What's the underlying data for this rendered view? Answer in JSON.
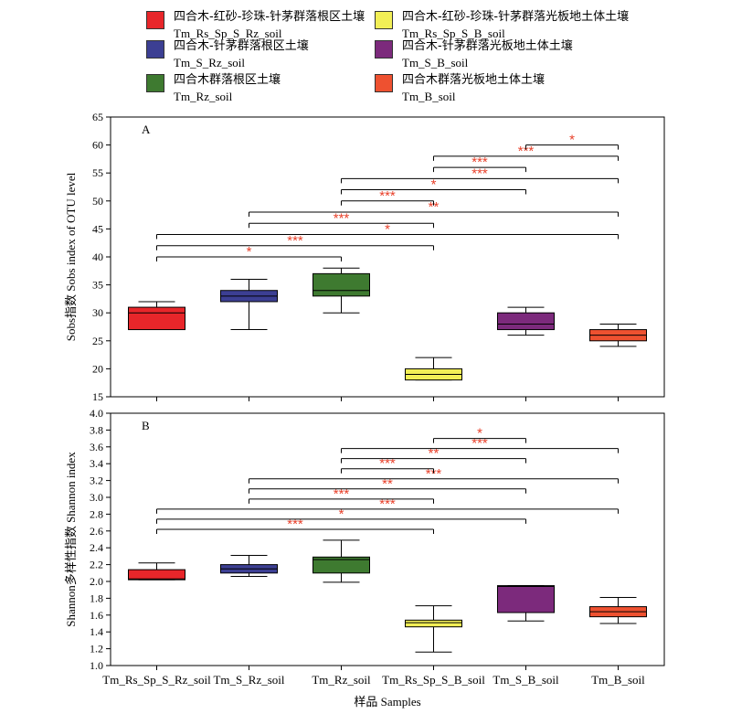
{
  "legend": [
    {
      "zh": "四合木-红砂-珍珠-针茅群落根区土壤",
      "en": "Tm_Rs_Sp_S_Rz_soil",
      "color": "#e8262a"
    },
    {
      "zh": "四合木-红砂-珍珠-针茅群落光板地土体土壤",
      "en": "Tm_Rs_Sp_S_B_soil",
      "color": "#f2ef56"
    },
    {
      "zh": "四合木-针茅群落根区土壤",
      "en": "Tm_S_Rz_soil",
      "color": "#3c3f93"
    },
    {
      "zh": "四合木-针茅群落光板地土体土壤",
      "en": "Tm_S_B_soil",
      "color": "#7c2a7c"
    },
    {
      "zh": "四合木群落根区土壤",
      "en": "Tm_Rz_soil",
      "color": "#3e7a30"
    },
    {
      "zh": "四合木群落光板地土体土壤",
      "en": "Tm_B_soil",
      "color": "#ee5130"
    }
  ],
  "x_label": "样品 Samples",
  "chart_data": [
    {
      "type": "box",
      "panel_label": "A",
      "ylabel": "Sobs指数 Sobs index of OTU level",
      "categories": [
        "Tm_Rs_Sp_S_Rz_soil",
        "Tm_S_Rz_soil",
        "Tm_Rz_soil",
        "Tm_Rs_Sp_S_B_soil",
        "Tm_S_B_soil",
        "Tm_B_soil"
      ],
      "colors": [
        "#e8262a",
        "#3c3f93",
        "#3e7a30",
        "#f2ef56",
        "#7c2a7c",
        "#ee5130"
      ],
      "ylim": [
        15,
        65
      ],
      "yticks": [
        15,
        20,
        25,
        30,
        35,
        40,
        45,
        50,
        55,
        60,
        65
      ],
      "boxes": [
        {
          "min": 27,
          "q1": 27,
          "median": 30,
          "q3": 31,
          "max": 32
        },
        {
          "min": 27,
          "q1": 32,
          "median": 33,
          "q3": 34,
          "max": 36
        },
        {
          "min": 30,
          "q1": 33,
          "median": 34,
          "q3": 37,
          "max": 38
        },
        {
          "min": 18,
          "q1": 18,
          "median": 19,
          "q3": 20,
          "max": 22
        },
        {
          "min": 26,
          "q1": 27,
          "median": 28,
          "q3": 30,
          "max": 31
        },
        {
          "min": 24,
          "q1": 25,
          "median": 26,
          "q3": 27,
          "max": 28
        }
      ],
      "significance": [
        {
          "from": 0,
          "to": 2,
          "level": 40,
          "label": "*"
        },
        {
          "from": 0,
          "to": 3,
          "level": 42,
          "label": "***"
        },
        {
          "from": 0,
          "to": 5,
          "level": 44,
          "label": "*"
        },
        {
          "from": 1,
          "to": 3,
          "level": 46,
          "label": "***"
        },
        {
          "from": 1,
          "to": 5,
          "level": 48,
          "label": "**"
        },
        {
          "from": 2,
          "to": 3,
          "level": 50,
          "label": "***"
        },
        {
          "from": 2,
          "to": 4,
          "level": 52,
          "label": "*"
        },
        {
          "from": 2,
          "to": 5,
          "level": 54,
          "label": "***"
        },
        {
          "from": 3,
          "to": 4,
          "level": 56,
          "label": "***"
        },
        {
          "from": 3,
          "to": 5,
          "level": 58,
          "label": "***"
        },
        {
          "from": 4,
          "to": 5,
          "level": 60,
          "label": "*"
        }
      ]
    },
    {
      "type": "box",
      "panel_label": "B",
      "ylabel": "Shannon多样性指数 Shannon index",
      "categories": [
        "Tm_Rs_Sp_S_Rz_soil",
        "Tm_S_Rz_soil",
        "Tm_Rz_soil",
        "Tm_Rs_Sp_S_B_soil",
        "Tm_S_B_soil",
        "Tm_B_soil"
      ],
      "colors": [
        "#e8262a",
        "#3c3f93",
        "#3e7a30",
        "#f2ef56",
        "#7c2a7c",
        "#ee5130"
      ],
      "ylim": [
        1.0,
        4.0
      ],
      "yticks": [
        "1.0",
        "1.2",
        "1.4",
        "1.6",
        "1.8",
        "2.0",
        "2.2",
        "2.4",
        "2.6",
        "2.8",
        "3.0",
        "3.2",
        "3.4",
        "3.6",
        "3.8",
        "4.0"
      ],
      "boxes": [
        {
          "min": 2.02,
          "q1": 2.02,
          "median": 2.03,
          "q3": 2.14,
          "max": 2.22
        },
        {
          "min": 2.06,
          "q1": 2.1,
          "median": 2.15,
          "q3": 2.2,
          "max": 2.31
        },
        {
          "min": 1.99,
          "q1": 2.1,
          "median": 2.26,
          "q3": 2.29,
          "max": 2.49
        },
        {
          "min": 1.16,
          "q1": 1.46,
          "median": 1.51,
          "q3": 1.54,
          "max": 1.71
        },
        {
          "min": 1.53,
          "q1": 1.63,
          "median": 1.94,
          "q3": 1.95,
          "max": 1.95
        },
        {
          "min": 1.5,
          "q1": 1.58,
          "median": 1.64,
          "q3": 1.7,
          "max": 1.81
        }
      ],
      "significance": [
        {
          "from": 0,
          "to": 3,
          "level": 2.62,
          "label": "***"
        },
        {
          "from": 0,
          "to": 4,
          "level": 2.74,
          "label": "*"
        },
        {
          "from": 0,
          "to": 5,
          "level": 2.86,
          "label": "***"
        },
        {
          "from": 1,
          "to": 3,
          "level": 2.98,
          "label": "***"
        },
        {
          "from": 1,
          "to": 4,
          "level": 3.1,
          "label": "**"
        },
        {
          "from": 1,
          "to": 5,
          "level": 3.22,
          "label": "***"
        },
        {
          "from": 2,
          "to": 3,
          "level": 3.34,
          "label": "***"
        },
        {
          "from": 2,
          "to": 4,
          "level": 3.46,
          "label": "**"
        },
        {
          "from": 2,
          "to": 5,
          "level": 3.58,
          "label": "***"
        },
        {
          "from": 3,
          "to": 4,
          "level": 3.7,
          "label": "*"
        }
      ]
    }
  ]
}
